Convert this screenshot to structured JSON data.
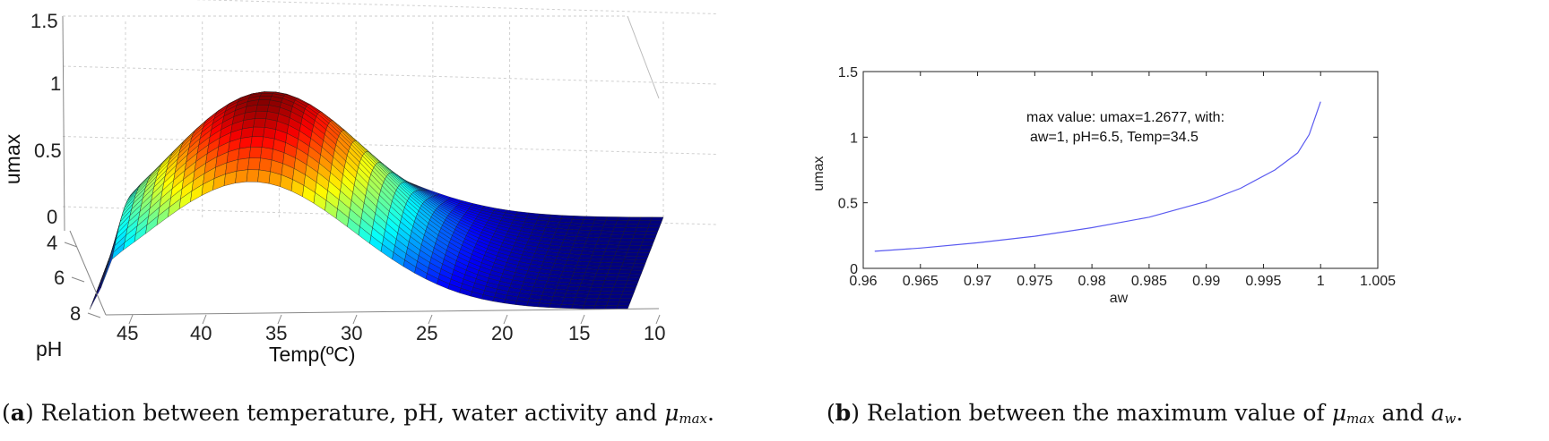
{
  "chart_data": [
    {
      "type": "surface",
      "title": "",
      "zlabel": "umax",
      "zticks": [
        "0",
        "0.5",
        "1",
        "1.5"
      ],
      "zlim": [
        0,
        1.5
      ],
      "ylabel": "pH",
      "yticks": [
        "4",
        "6",
        "8"
      ],
      "xlabel": "Temp(ºC)",
      "xticks": [
        "45",
        "40",
        "35",
        "30",
        "25",
        "20",
        "15",
        "10"
      ],
      "xlim": [
        10,
        45
      ],
      "ylim": [
        4,
        8
      ],
      "peak": {
        "temp": 34.5,
        "pH": 6.5,
        "umax": 1.27
      },
      "colormap": "jet"
    },
    {
      "type": "line",
      "title": "",
      "xlabel": "aw",
      "ylabel": "umax",
      "xlim": [
        0.96,
        1.005
      ],
      "ylim": [
        0,
        1.5
      ],
      "xticks": [
        "0.96",
        "0.965",
        "0.97",
        "0.975",
        "0.98",
        "0.985",
        "0.99",
        "0.995",
        "1",
        "1.005"
      ],
      "yticks": [
        "0",
        "0.5",
        "1",
        "1.5"
      ],
      "series": [
        {
          "name": "umax",
          "color": "#5a5af0",
          "x": [
            0.961,
            0.965,
            0.97,
            0.975,
            0.98,
            0.985,
            0.99,
            0.993,
            0.996,
            0.998,
            0.999,
            1.0
          ],
          "y": [
            0.13,
            0.155,
            0.195,
            0.245,
            0.31,
            0.39,
            0.51,
            0.61,
            0.75,
            0.88,
            1.02,
            1.27
          ]
        }
      ],
      "annotation": {
        "line1": "max value: umax=1.2677, with:",
        "line2": "aw=1, pH=6.5, Temp=34.5"
      }
    }
  ],
  "captions": {
    "a_label": "a",
    "a_text": "Relation between temperature, pH, water activity and",
    "a_symbol": "μ",
    "a_sub": "max",
    "b_label": "b",
    "b_text": "Relation between the maximum value of",
    "b_symbol": "μ",
    "b_sub": "max",
    "b_and": "and",
    "b_symbol2": "a",
    "b_sub2": "w"
  }
}
